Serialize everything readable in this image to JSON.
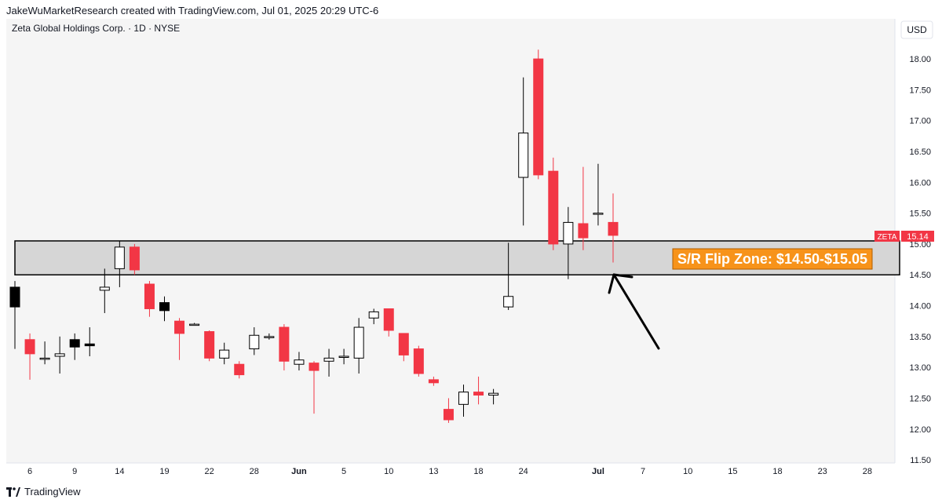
{
  "credit": "JakeWuMarketResearch created with TradingView.com, Jul 01, 2025 20:29 UTC-6",
  "footer_brand": "TradingView",
  "colors": {
    "bull_body": "#ffffff",
    "bull_border": "#000000",
    "bear_body": "#f23645",
    "bear_wick": "#f23645",
    "zone_fill": "#d6d6d6",
    "zone_border": "#000000",
    "annotation_bg": "#f7931a",
    "annotation_text": "#ffffff",
    "price_tag": "#f23645",
    "plot_bg": "#f5f5f5"
  },
  "chart_data": {
    "type": "candlestick",
    "title": "Zeta Global Holdings Corp. · 1D · NYSE",
    "currency": "USD",
    "ylim": [
      11.45,
      18.65
    ],
    "y_ticks": [
      "11.50",
      "12.00",
      "12.50",
      "13.00",
      "13.50",
      "14.00",
      "14.50",
      "15.00",
      "15.50",
      "16.00",
      "16.50",
      "17.00",
      "17.50",
      "18.00"
    ],
    "x_ticks": [
      {
        "label": "6",
        "i": 1
      },
      {
        "label": "9",
        "i": 4
      },
      {
        "label": "14",
        "i": 7
      },
      {
        "label": "19",
        "i": 10
      },
      {
        "label": "22",
        "i": 13
      },
      {
        "label": "28",
        "i": 16
      },
      {
        "label": "Jun",
        "i": 19
      },
      {
        "label": "5",
        "i": 22
      },
      {
        "label": "10",
        "i": 25
      },
      {
        "label": "13",
        "i": 28
      },
      {
        "label": "18",
        "i": 31
      },
      {
        "label": "24",
        "i": 34
      },
      {
        "label": "Jul",
        "i": 39
      },
      {
        "label": "7",
        "i": 42
      },
      {
        "label": "10",
        "i": 45
      },
      {
        "label": "15",
        "i": 48
      },
      {
        "label": "18",
        "i": 51
      },
      {
        "label": "23",
        "i": 54
      },
      {
        "label": "28",
        "i": 57
      }
    ],
    "series": [
      {
        "ticker": "ZETA",
        "last_price": "15.14",
        "candles": [
          {
            "o": 14.3,
            "h": 14.4,
            "l": 13.3,
            "c": 13.98,
            "dark": true
          },
          {
            "o": 13.45,
            "h": 13.55,
            "l": 12.8,
            "c": 13.22
          },
          {
            "o": 13.15,
            "h": 13.42,
            "l": 13.05,
            "c": 13.15
          },
          {
            "o": 13.18,
            "h": 13.5,
            "l": 12.9,
            "c": 13.22
          },
          {
            "o": 13.45,
            "h": 13.55,
            "l": 13.12,
            "c": 13.33,
            "dark": true
          },
          {
            "o": 13.38,
            "h": 13.65,
            "l": 13.18,
            "c": 13.35,
            "dark": true
          },
          {
            "o": 14.25,
            "h": 14.6,
            "l": 13.88,
            "c": 14.3
          },
          {
            "o": 14.6,
            "h": 15.05,
            "l": 14.3,
            "c": 14.95
          },
          {
            "o": 14.95,
            "h": 15.0,
            "l": 14.5,
            "c": 14.58
          },
          {
            "o": 14.35,
            "h": 14.4,
            "l": 13.82,
            "c": 13.95
          },
          {
            "o": 14.05,
            "h": 14.15,
            "l": 13.75,
            "c": 13.92,
            "dark": true
          },
          {
            "o": 13.75,
            "h": 13.8,
            "l": 13.12,
            "c": 13.55
          },
          {
            "o": 13.7,
            "h": 13.72,
            "l": 13.68,
            "c": 13.7
          },
          {
            "o": 13.58,
            "h": 13.6,
            "l": 13.1,
            "c": 13.15
          },
          {
            "o": 13.15,
            "h": 13.4,
            "l": 13.05,
            "c": 13.28
          },
          {
            "o": 13.05,
            "h": 13.1,
            "l": 12.82,
            "c": 12.88
          },
          {
            "o": 13.3,
            "h": 13.65,
            "l": 13.2,
            "c": 13.52
          },
          {
            "o": 13.5,
            "h": 13.55,
            "l": 13.45,
            "c": 13.5
          },
          {
            "o": 13.65,
            "h": 13.7,
            "l": 12.95,
            "c": 13.1
          },
          {
            "o": 13.05,
            "h": 13.25,
            "l": 12.95,
            "c": 13.12
          },
          {
            "o": 13.07,
            "h": 13.1,
            "l": 12.25,
            "c": 12.95
          },
          {
            "o": 13.1,
            "h": 13.3,
            "l": 12.85,
            "c": 13.15
          },
          {
            "o": 13.18,
            "h": 13.3,
            "l": 13.05,
            "c": 13.18
          },
          {
            "o": 13.15,
            "h": 13.8,
            "l": 12.9,
            "c": 13.65
          },
          {
            "o": 13.8,
            "h": 13.95,
            "l": 13.7,
            "c": 13.9
          },
          {
            "o": 13.95,
            "h": 13.95,
            "l": 13.5,
            "c": 13.6
          },
          {
            "o": 13.55,
            "h": 13.55,
            "l": 13.1,
            "c": 13.2
          },
          {
            "o": 13.3,
            "h": 13.35,
            "l": 12.85,
            "c": 12.9
          },
          {
            "o": 12.8,
            "h": 12.85,
            "l": 12.7,
            "c": 12.75
          },
          {
            "o": 12.32,
            "h": 12.5,
            "l": 12.1,
            "c": 12.15
          },
          {
            "o": 12.4,
            "h": 12.72,
            "l": 12.2,
            "c": 12.6
          },
          {
            "o": 12.6,
            "h": 12.85,
            "l": 12.4,
            "c": 12.55
          },
          {
            "o": 12.55,
            "h": 12.65,
            "l": 12.4,
            "c": 12.58
          },
          {
            "o": 13.98,
            "h": 15.02,
            "l": 13.93,
            "c": 14.15
          },
          {
            "o": 16.08,
            "h": 17.7,
            "l": 15.3,
            "c": 16.8
          },
          {
            "o": 18.0,
            "h": 18.15,
            "l": 16.05,
            "c": 16.12
          },
          {
            "o": 16.18,
            "h": 16.4,
            "l": 14.9,
            "c": 15.0
          },
          {
            "o": 15.0,
            "h": 15.6,
            "l": 14.43,
            "c": 15.35
          },
          {
            "o": 15.33,
            "h": 16.25,
            "l": 14.9,
            "c": 15.1
          },
          {
            "o": 15.49,
            "h": 16.3,
            "l": 15.3,
            "c": 15.5
          },
          {
            "o": 15.35,
            "h": 15.82,
            "l": 14.7,
            "c": 15.14
          }
        ]
      }
    ],
    "zones": [
      {
        "low": 14.5,
        "high": 15.05,
        "label": "S/R Flip Zone: $14.50-$15.05"
      }
    ]
  }
}
